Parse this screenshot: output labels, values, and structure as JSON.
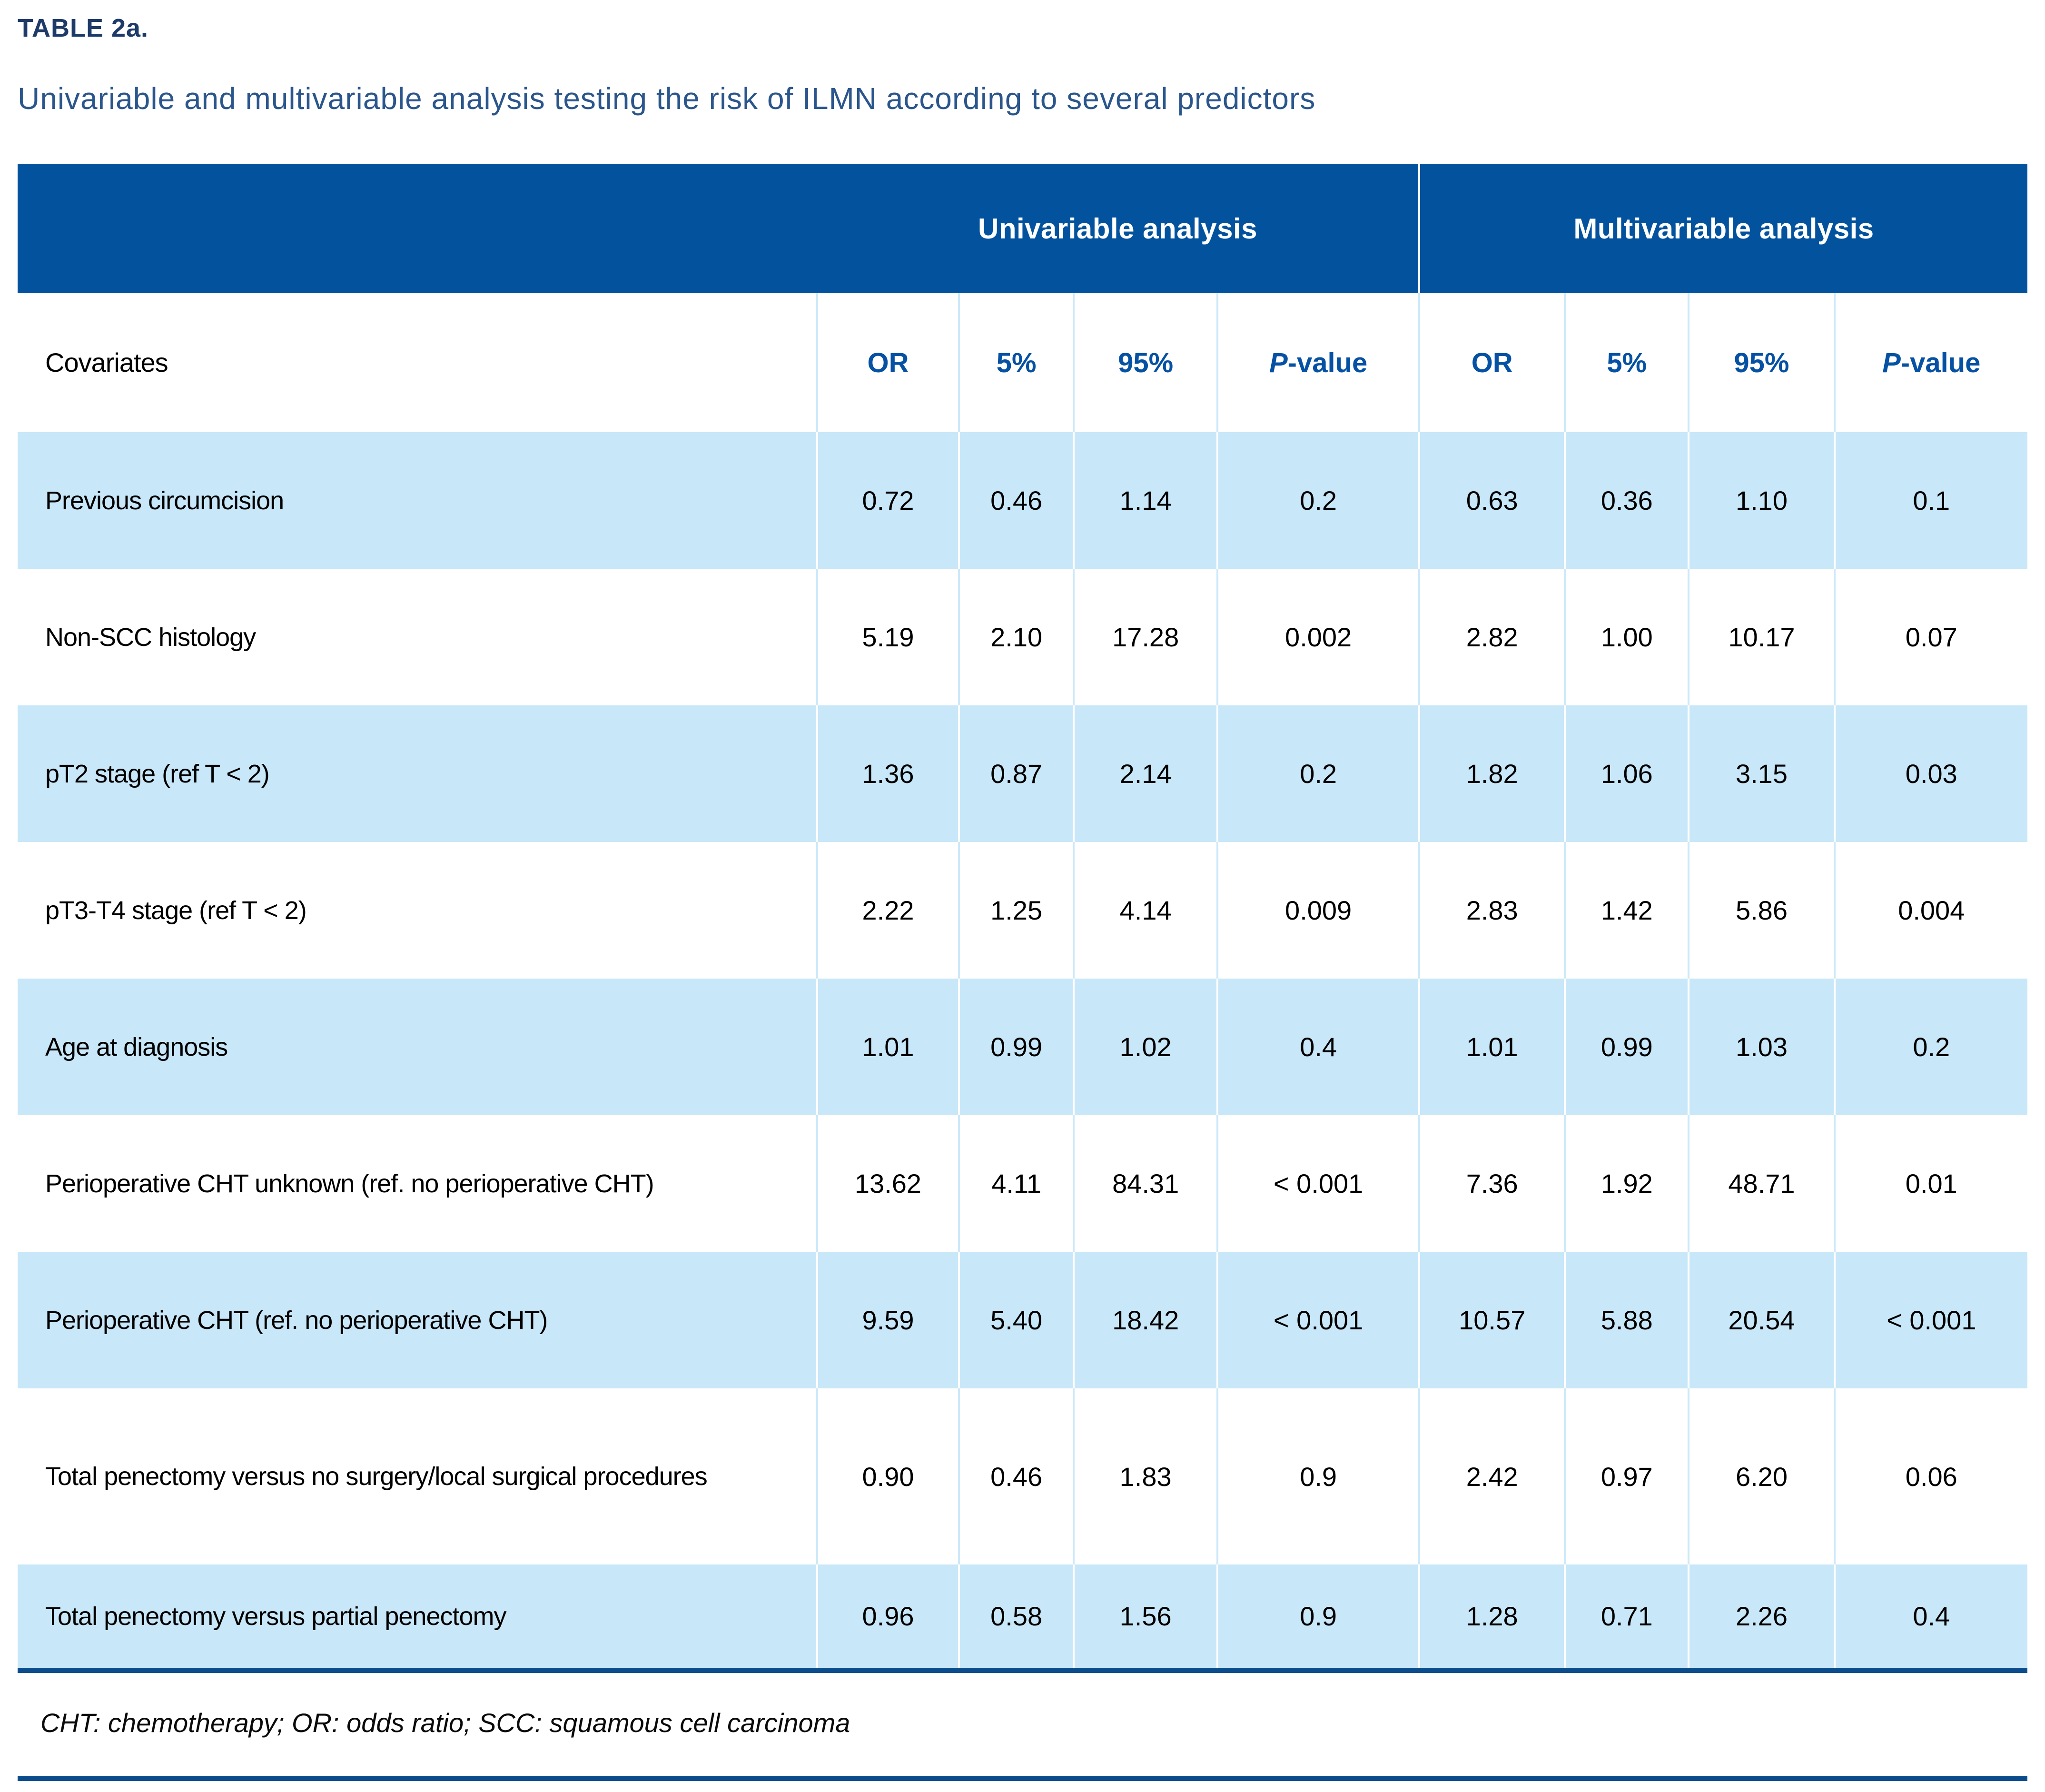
{
  "header": {
    "label": "TABLE 2a.",
    "title": "Univariable and multivariable analysis testing the risk of ILMN according to several predictors"
  },
  "table": {
    "group_headers": {
      "univariable": "Univariable analysis",
      "multivariable": "Multivariable analysis"
    },
    "covariates_label": "Covariates",
    "col_or": "OR",
    "col_5": "5%",
    "col_95": "95%",
    "col_p_italic": "P",
    "col_p_rest": "-value",
    "rows": [
      {
        "label": "Previous circumcision",
        "values": [
          "0.72",
          "0.46",
          "1.14",
          "0.2",
          "0.63",
          "0.36",
          "1.10",
          "0.1"
        ]
      },
      {
        "label": "Non-SCC histology",
        "values": [
          "5.19",
          "2.10",
          "17.28",
          "0.002",
          "2.82",
          "1.00",
          "10.17",
          "0.07"
        ]
      },
      {
        "label": "pT2 stage (ref T < 2)",
        "values": [
          "1.36",
          "0.87",
          "2.14",
          "0.2",
          "1.82",
          "1.06",
          "3.15",
          "0.03"
        ]
      },
      {
        "label": "pT3-T4 stage (ref T < 2)",
        "values": [
          "2.22",
          "1.25",
          "4.14",
          "0.009",
          "2.83",
          "1.42",
          "5.86",
          "0.004"
        ]
      },
      {
        "label": "Age at diagnosis",
        "values": [
          "1.01",
          "0.99",
          "1.02",
          "0.4",
          "1.01",
          "0.99",
          "1.03",
          "0.2"
        ]
      },
      {
        "label": "Perioperative CHT unknown (ref. no perioperative CHT)",
        "values": [
          "13.62",
          "4.11",
          "84.31",
          "< 0.001",
          "7.36",
          "1.92",
          "48.71",
          "0.01"
        ]
      },
      {
        "label": "Perioperative CHT (ref. no perioperative CHT)",
        "values": [
          "9.59",
          "5.40",
          "18.42",
          "< 0.001",
          "10.57",
          "5.88",
          "20.54",
          "< 0.001"
        ]
      },
      {
        "label": "Total penectomy versus no surgery/local surgical procedures",
        "values": [
          "0.90",
          "0.46",
          "1.83",
          "0.9",
          "2.42",
          "0.97",
          "6.20",
          "0.06"
        ]
      },
      {
        "label": "Total penectomy versus partial penectomy",
        "values": [
          "0.96",
          "0.58",
          "1.56",
          "0.9",
          "1.28",
          "0.71",
          "2.26",
          "0.4"
        ]
      }
    ]
  },
  "footnote": "CHT: chemotherapy; OR: odds ratio; SCC: squamous cell carcinoma",
  "colors": {
    "header_band": "#02529E",
    "row_alt_blue": "#C8E7F9",
    "column_header_text": "#0551A3",
    "title_navy": "#1E3A68",
    "subtitle_blue": "#2A568C",
    "rule_navy": "#0A4C8C"
  }
}
